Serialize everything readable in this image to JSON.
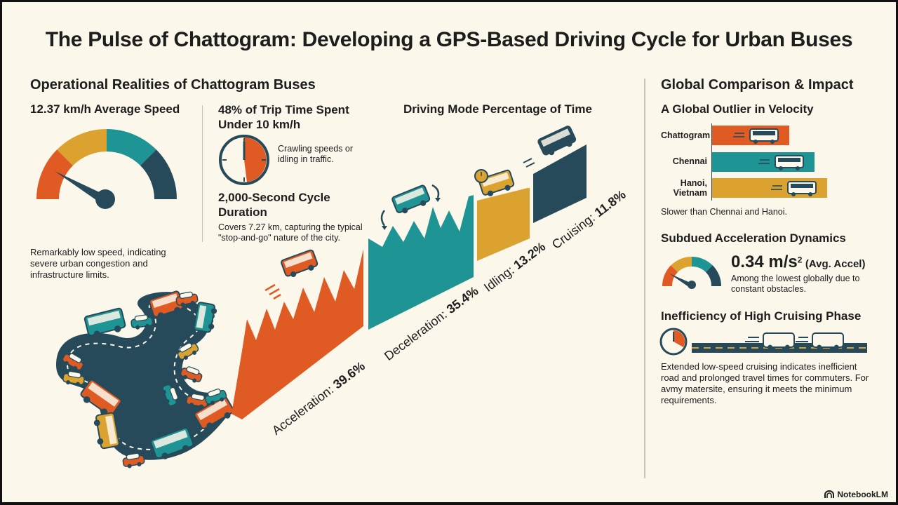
{
  "title": "The Pulse of Chattogram: Developing a GPS-Based Driving Cycle for Urban Buses",
  "left": {
    "heading": "Operational Realities of Chattogram Buses",
    "speed": {
      "title": "12.37 km/h Average Speed",
      "caption": "Remarkably low speed, indicating severe urban congestion and infrastructure limits."
    },
    "trip": {
      "title": "48% of Trip Time Spent Under 10 km/h",
      "caption": "Crawling speeds or idling in traffic.",
      "fraction_under_10kmh": 0.48
    },
    "cycle": {
      "title": "2,000-Second Cycle Duration",
      "caption": "Covers 7.27 km, capturing the typical \"stop-and-go\" nature of the city."
    }
  },
  "modes": {
    "heading": "Driving Mode Percentage of Time",
    "items": [
      {
        "label": "Acceleration:",
        "value": "39.6%",
        "percent": 39.6,
        "color": "#E05A24"
      },
      {
        "label": "Deceleration:",
        "value": "35.4%",
        "percent": 35.4,
        "color": "#1F9495"
      },
      {
        "label": "Idling:",
        "value": "13.2%",
        "percent": 13.2,
        "color": "#DBA22F"
      },
      {
        "label": "Cruising:",
        "value": "11.8%",
        "percent": 11.8,
        "color": "#264A5A"
      }
    ]
  },
  "right": {
    "heading": "Global Comparison & Impact",
    "velocity": {
      "title": "A Global Outlier in Velocity",
      "cities": [
        {
          "name": "Chattogram",
          "relative": 0.55,
          "color": "#E05A24"
        },
        {
          "name": "Chennai",
          "relative": 0.73,
          "color": "#1F9495"
        },
        {
          "name": "Hanoi, Vietnam",
          "relative": 0.82,
          "color": "#DBA22F"
        }
      ],
      "caption": "Slower than Chennai and Hanoi."
    },
    "accel": {
      "title": "Subdued Acceleration Dynamics",
      "value": "0.34 m/s",
      "exp": "2",
      "qualifier": "(Avg. Accel)",
      "caption": "Among the lowest globally due to constant obstacles."
    },
    "cruise": {
      "title": "Inefficiency of High Cruising Phase",
      "caption": "Extended low-speed cruising indicates inefficient road and prolonged travel times for commuters. For avmy matersite, ensuring it meets the minimum requirements."
    }
  },
  "brand": "NotebookLM",
  "colors": {
    "orange": "#E05A24",
    "teal": "#1F9495",
    "gold": "#DBA22F",
    "navy": "#264A5A",
    "bg": "#FBF7EA"
  },
  "icons": [
    "speedometer-icon",
    "clock-icon",
    "bus-icon",
    "car-icon",
    "notebooklm-logo-icon"
  ]
}
